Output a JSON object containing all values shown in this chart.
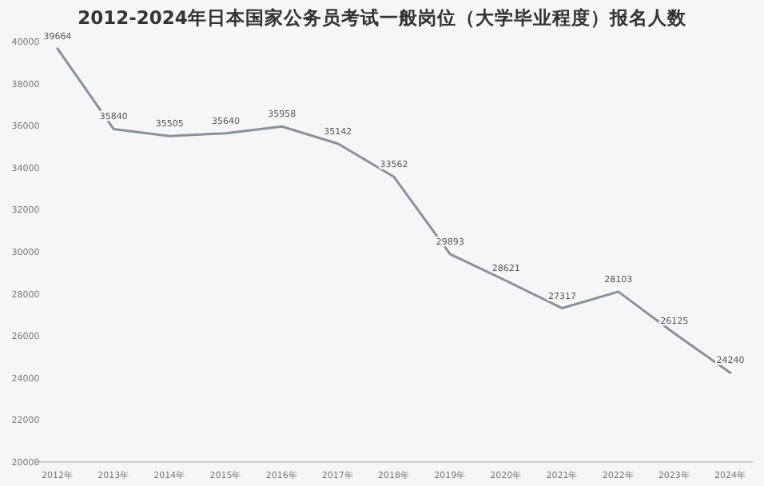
{
  "chart_data": {
    "type": "line",
    "title": "2012-2024年日本国家公务员考试一般岗位（大学毕业程度）报名人数",
    "categories": [
      "2012年",
      "2013年",
      "2014年",
      "2015年",
      "2016年",
      "2017年",
      "2018年",
      "2019年",
      "2020年",
      "2021年",
      "2022年",
      "2023年",
      "2024年"
    ],
    "series": [
      {
        "color": "#8c9099",
        "values": [
          39664,
          35840,
          35505,
          35640,
          35958,
          35142,
          33562,
          29893,
          28621,
          27317,
          28103,
          26125,
          24240
        ]
      }
    ],
    "ylim": [
      20000,
      40000
    ],
    "yticks": [
      20000,
      22000,
      24000,
      26000,
      28000,
      30000,
      32000,
      34000,
      36000,
      38000,
      40000
    ],
    "data_labels": true,
    "grid": false,
    "marker": "none",
    "line_style": "solid"
  }
}
